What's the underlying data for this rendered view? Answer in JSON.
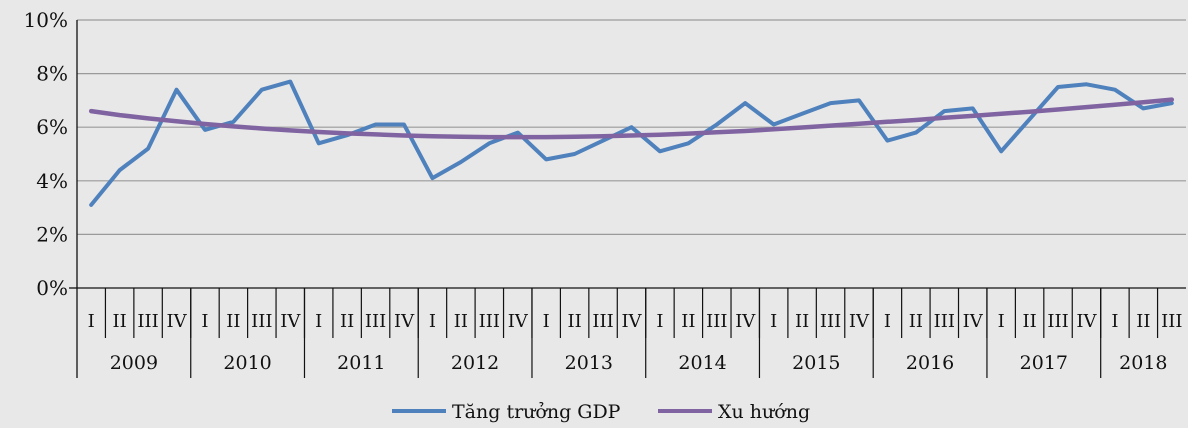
{
  "chart_data": {
    "type": "line",
    "ylim": [
      0,
      10
    ],
    "y_ticks": [
      "0%",
      "2%",
      "4%",
      "6%",
      "8%",
      "10%"
    ],
    "grid": "horizontal",
    "legend_position": "bottom",
    "quarters": [
      "I",
      "II",
      "III",
      "IV",
      "I",
      "II",
      "III",
      "IV",
      "I",
      "II",
      "III",
      "IV",
      "I",
      "II",
      "III",
      "IV",
      "I",
      "II",
      "III",
      "IV",
      "I",
      "II",
      "III",
      "IV",
      "I",
      "II",
      "III",
      "IV",
      "I",
      "II",
      "III",
      "IV",
      "I",
      "II",
      "III",
      "IV",
      "I",
      "II",
      "III"
    ],
    "years": [
      {
        "label": "2009",
        "quarters": 4
      },
      {
        "label": "2010",
        "quarters": 4
      },
      {
        "label": "2011",
        "quarters": 4
      },
      {
        "label": "2012",
        "quarters": 4
      },
      {
        "label": "2013",
        "quarters": 4
      },
      {
        "label": "2014",
        "quarters": 4
      },
      {
        "label": "2015",
        "quarters": 4
      },
      {
        "label": "2016",
        "quarters": 4
      },
      {
        "label": "2017",
        "quarters": 4
      },
      {
        "label": "2018",
        "quarters": 3
      }
    ],
    "series": [
      {
        "name": "Tăng trưởng GDP",
        "color": "#4f81bd",
        "values": [
          3.1,
          4.4,
          5.2,
          7.4,
          5.9,
          6.2,
          7.4,
          7.7,
          5.4,
          5.7,
          6.1,
          6.1,
          4.1,
          4.7,
          5.4,
          5.8,
          4.8,
          5.0,
          5.5,
          6.0,
          5.1,
          5.4,
          6.1,
          6.9,
          6.1,
          6.5,
          6.9,
          7.0,
          5.5,
          5.8,
          6.6,
          6.7,
          5.1,
          6.3,
          7.5,
          7.6,
          7.4,
          6.7,
          6.9
        ]
      },
      {
        "name": "Xu hướng",
        "color": "#8064a2",
        "values": [
          6.6,
          6.45,
          6.33,
          6.22,
          6.12,
          6.03,
          5.95,
          5.88,
          5.82,
          5.77,
          5.73,
          5.69,
          5.66,
          5.64,
          5.63,
          5.63,
          5.63,
          5.64,
          5.66,
          5.69,
          5.72,
          5.76,
          5.81,
          5.86,
          5.92,
          5.99,
          6.06,
          6.13,
          6.2,
          6.27,
          6.35,
          6.42,
          6.5,
          6.58,
          6.66,
          6.75,
          6.84,
          6.93,
          7.03
        ]
      }
    ]
  }
}
